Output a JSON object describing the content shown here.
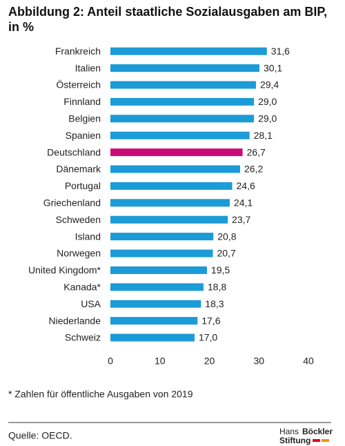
{
  "chart_data": {
    "type": "bar",
    "orientation": "horizontal",
    "title": "Abbildung 2: Anteil staatliche Sozialausgaben am BIP, in %",
    "categories": [
      "Frankreich",
      "Italien",
      "Österreich",
      "Finnland",
      "Belgien",
      "Spanien",
      "Deutschland",
      "Dänemark",
      "Portugal",
      "Griechenland",
      "Schweden",
      "Island",
      "Norwegen",
      "United Kingdom*",
      "Kanada*",
      "USA",
      "Niederlande",
      "Schweiz"
    ],
    "values": [
      31.6,
      30.1,
      29.4,
      29.0,
      29.0,
      28.1,
      26.7,
      26.2,
      24.6,
      24.1,
      23.7,
      20.8,
      20.7,
      19.5,
      18.8,
      18.3,
      17.6,
      17.0
    ],
    "value_labels": [
      "31,6",
      "30,1",
      "29,4",
      "29,0",
      "29,0",
      "28,1",
      "26,7",
      "26,2",
      "24,6",
      "24,1",
      "23,7",
      "20,8",
      "20,7",
      "19,5",
      "18,8",
      "18,3",
      "17,6",
      "17,0"
    ],
    "colors": [
      "#1b9bd7",
      "#1b9bd7",
      "#1b9bd7",
      "#1b9bd7",
      "#1b9bd7",
      "#1b9bd7",
      "#cc0a77",
      "#1b9bd7",
      "#1b9bd7",
      "#1b9bd7",
      "#1b9bd7",
      "#1b9bd7",
      "#1b9bd7",
      "#1b9bd7",
      "#1b9bd7",
      "#1b9bd7",
      "#1b9bd7",
      "#1b9bd7"
    ],
    "xlim": [
      0,
      40
    ],
    "xticks": [
      0,
      10,
      20,
      30,
      40
    ],
    "grid": false,
    "footnote": "* Zahlen für öffentliche Ausgaben von 2019",
    "source": "Quelle: OECD.",
    "logo": [
      "Hans",
      "Böckler",
      "Stiftung"
    ]
  }
}
